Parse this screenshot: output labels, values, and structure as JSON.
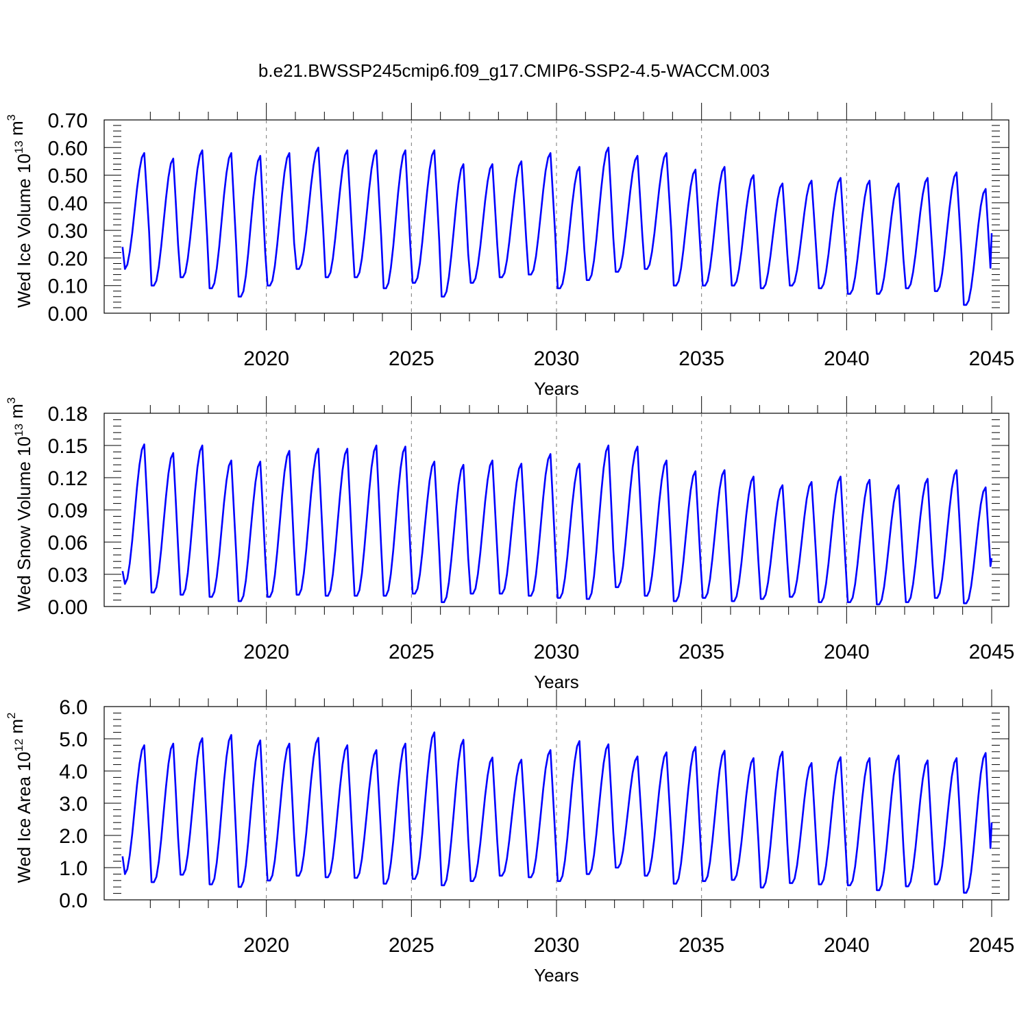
{
  "title": "b.e21.BWSSP245cmip6.f09_g17.CMIP6-SSP2-4.5-WACCM.003",
  "chart_data": [
    {
      "type": "line",
      "ylabel": {
        "prefix": "Wed Ice Volume 10",
        "exp": "13",
        "unit": " m",
        "unit_exp": "3"
      },
      "xlabel": "Years",
      "xlim": [
        2015.0,
        2045.0
      ],
      "ylim": [
        0.0,
        0.7
      ],
      "yticks": [
        "0.00",
        "0.10",
        "0.20",
        "0.30",
        "0.40",
        "0.50",
        "0.60",
        "0.70"
      ],
      "ytick_values": [
        0.0,
        0.1,
        0.2,
        0.3,
        0.4,
        0.5,
        0.6,
        0.7
      ],
      "xticks": [
        "2020",
        "2025",
        "2030",
        "2035",
        "2040",
        "2045"
      ],
      "xtick_values": [
        2020,
        2025,
        2030,
        2035,
        2040,
        2045
      ],
      "vlines": [
        2020,
        2025,
        2030,
        2035,
        2040
      ],
      "color": "#0000ff",
      "start_value": 0.24,
      "end_value": 0.29,
      "annual_min": [
        0.16,
        0.1,
        0.13,
        0.09,
        0.06,
        0.1,
        0.16,
        0.13,
        0.13,
        0.09,
        0.11,
        0.06,
        0.11,
        0.13,
        0.14,
        0.09,
        0.12,
        0.15,
        0.16,
        0.1,
        0.1,
        0.1,
        0.09,
        0.1,
        0.09,
        0.07,
        0.07,
        0.09,
        0.08,
        0.03
      ],
      "annual_max": [
        0.58,
        0.56,
        0.59,
        0.58,
        0.57,
        0.58,
        0.6,
        0.59,
        0.59,
        0.59,
        0.59,
        0.54,
        0.54,
        0.55,
        0.58,
        0.53,
        0.6,
        0.57,
        0.58,
        0.52,
        0.53,
        0.5,
        0.47,
        0.48,
        0.49,
        0.48,
        0.47,
        0.49,
        0.51,
        0.45
      ]
    },
    {
      "type": "line",
      "ylabel": {
        "prefix": "Wed Snow Volume 10",
        "exp": "13",
        "unit": " m",
        "unit_exp": "3"
      },
      "xlabel": "Years",
      "xlim": [
        2015.0,
        2045.0
      ],
      "ylim": [
        0.0,
        0.18
      ],
      "yticks": [
        "0.00",
        "0.03",
        "0.06",
        "0.09",
        "0.12",
        "0.15",
        "0.18"
      ],
      "ytick_values": [
        0.0,
        0.03,
        0.06,
        0.09,
        0.12,
        0.15,
        0.18
      ],
      "xticks": [
        "2020",
        "2025",
        "2030",
        "2035",
        "2040",
        "2045"
      ],
      "xtick_values": [
        2020,
        2025,
        2030,
        2035,
        2040,
        2045
      ],
      "vlines": [
        2020,
        2025,
        2030,
        2035,
        2040
      ],
      "color": "#0000ff",
      "start_value": 0.033,
      "end_value": 0.045,
      "annual_min": [
        0.021,
        0.013,
        0.011,
        0.009,
        0.005,
        0.009,
        0.011,
        0.01,
        0.01,
        0.01,
        0.012,
        0.004,
        0.012,
        0.012,
        0.01,
        0.008,
        0.007,
        0.018,
        0.01,
        0.005,
        0.008,
        0.005,
        0.007,
        0.009,
        0.004,
        0.004,
        0.002,
        0.004,
        0.008,
        0.003
      ],
      "annual_max": [
        0.151,
        0.143,
        0.15,
        0.136,
        0.135,
        0.145,
        0.147,
        0.147,
        0.15,
        0.149,
        0.135,
        0.132,
        0.136,
        0.133,
        0.142,
        0.133,
        0.15,
        0.149,
        0.136,
        0.126,
        0.127,
        0.121,
        0.113,
        0.116,
        0.121,
        0.118,
        0.113,
        0.119,
        0.127,
        0.111
      ]
    },
    {
      "type": "line",
      "ylabel": {
        "prefix": "Wed Ice Area 10",
        "exp": "12",
        "unit": " m",
        "unit_exp": "2"
      },
      "xlabel": "Years",
      "xlim": [
        2015.0,
        2045.0
      ],
      "ylim": [
        0.0,
        6.0
      ],
      "yticks": [
        "0.0",
        "1.0",
        "2.0",
        "3.0",
        "4.0",
        "5.0",
        "6.0"
      ],
      "ytick_values": [
        0,
        1,
        2,
        3,
        4,
        5,
        6
      ],
      "xticks": [
        "2020",
        "2025",
        "2030",
        "2035",
        "2040",
        "2045"
      ],
      "xtick_values": [
        2020,
        2025,
        2030,
        2035,
        2040,
        2045
      ],
      "vlines": [
        2020,
        2025,
        2030,
        2035,
        2040
      ],
      "color": "#0000ff",
      "start_value": 1.35,
      "end_value": 2.4,
      "annual_min": [
        0.8,
        0.55,
        0.78,
        0.48,
        0.4,
        0.6,
        0.75,
        0.7,
        0.68,
        0.5,
        0.65,
        0.45,
        0.58,
        0.75,
        0.7,
        0.58,
        0.8,
        1.0,
        0.75,
        0.5,
        0.58,
        0.62,
        0.38,
        0.52,
        0.48,
        0.45,
        0.3,
        0.42,
        0.48,
        0.22
      ],
      "annual_max": [
        4.8,
        4.85,
        5.02,
        5.12,
        4.95,
        4.85,
        5.03,
        4.8,
        4.65,
        4.85,
        5.2,
        4.97,
        4.42,
        4.35,
        4.65,
        4.93,
        4.83,
        4.45,
        4.58,
        4.75,
        4.63,
        4.4,
        4.6,
        4.25,
        4.43,
        4.4,
        4.48,
        4.33,
        4.4,
        4.56
      ]
    }
  ]
}
